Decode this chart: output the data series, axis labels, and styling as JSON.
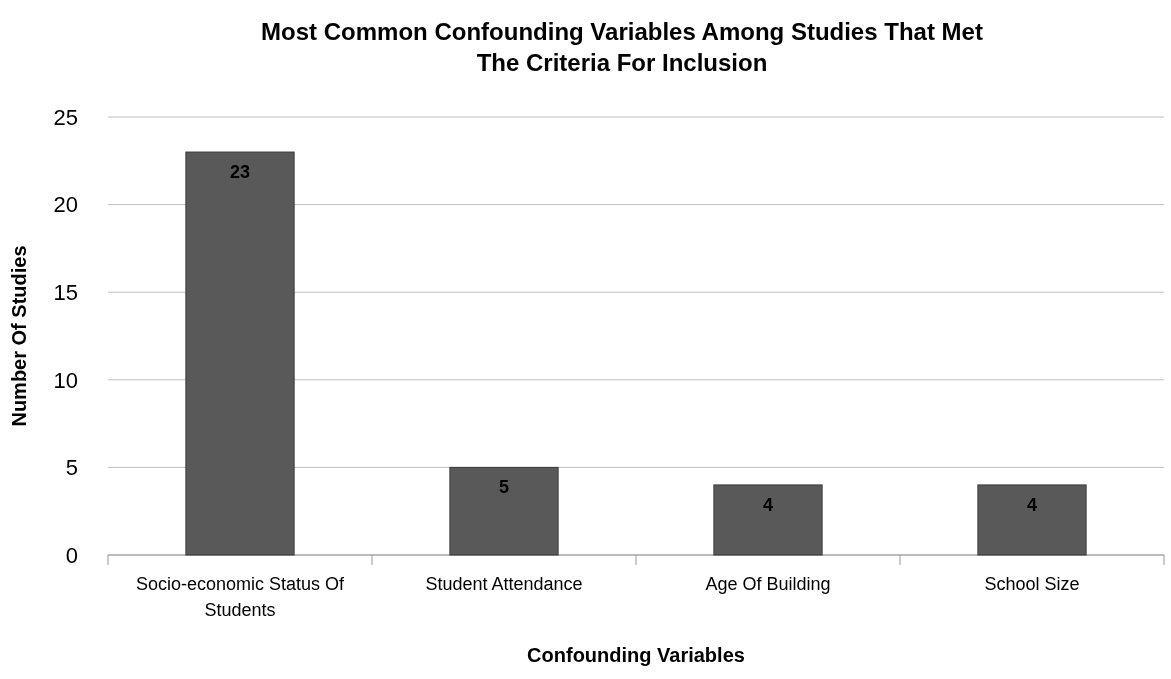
{
  "chart_data": {
    "type": "bar",
    "title": "Most Common Confounding Variables Among Studies That Met The Criteria For Inclusion",
    "xlabel": "Confounding Variables",
    "ylabel": "Number Of Studies",
    "categories": [
      "Socio-economic Status Of Students",
      "Student Attendance",
      "Age Of Building",
      "School Size"
    ],
    "values": [
      23,
      5,
      4,
      4
    ],
    "color": "#595959",
    "ylim": [
      0,
      25
    ],
    "yticks": [
      0,
      5,
      10,
      15,
      20,
      25
    ],
    "grid": "y",
    "data_labels": true
  }
}
